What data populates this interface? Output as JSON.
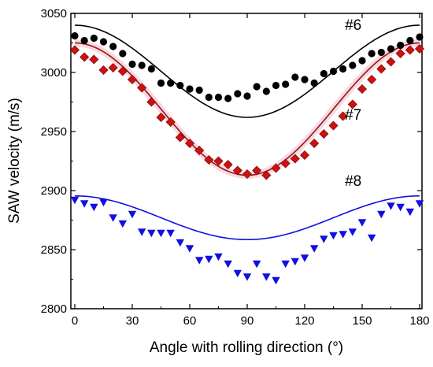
{
  "chart_data": {
    "type": "scatter",
    "xlabel": "Angle with rolling direction (°)",
    "ylabel": "SAW velocity (m/s)",
    "xlim": [
      0,
      180
    ],
    "ylim": [
      2800,
      3050
    ],
    "xticks": [
      0,
      30,
      60,
      90,
      120,
      150,
      180
    ],
    "yticks": [
      2800,
      2850,
      2900,
      2950,
      3000,
      3050
    ],
    "grid": false,
    "series": [
      {
        "name": "#6",
        "marker": "circle",
        "color": "#000000",
        "x": [
          0,
          5,
          10,
          15,
          20,
          25,
          30,
          35,
          40,
          45,
          50,
          55,
          60,
          65,
          70,
          75,
          80,
          85,
          90,
          95,
          100,
          105,
          110,
          115,
          120,
          125,
          130,
          135,
          140,
          145,
          150,
          155,
          160,
          165,
          170,
          175,
          180
        ],
        "y": [
          3031,
          3027,
          3029,
          3026,
          3022,
          3016,
          3007,
          3006,
          3003,
          2991,
          2991,
          2989,
          2986,
          2985,
          2979,
          2979,
          2978,
          2982,
          2980,
          2988,
          2984,
          2989,
          2990,
          2996,
          2994,
          2991,
          2999,
          3001,
          3003,
          3006,
          3010,
          3016,
          3017,
          3020,
          3023,
          3027,
          3030
        ],
        "fit": {
          "mean": 3001,
          "amplitude": 39
        }
      },
      {
        "name": "#7",
        "marker": "diamond",
        "color": "#cc1111",
        "x": [
          0,
          5,
          10,
          15,
          20,
          25,
          30,
          35,
          40,
          45,
          50,
          55,
          60,
          65,
          70,
          75,
          80,
          85,
          90,
          95,
          100,
          105,
          110,
          115,
          120,
          125,
          130,
          135,
          140,
          145,
          150,
          155,
          160,
          165,
          170,
          175,
          180
        ],
        "y": [
          3019,
          3013,
          3011,
          3002,
          3004,
          3001,
          2994,
          2987,
          2975,
          2962,
          2958,
          2945,
          2940,
          2934,
          2926,
          2925,
          2922,
          2917,
          2914,
          2917,
          2913,
          2919,
          2923,
          2927,
          2930,
          2940,
          2948,
          2955,
          2963,
          2973,
          2986,
          2994,
          3003,
          3009,
          3016,
          3019,
          3020
        ],
        "fit": {
          "mean": 2969,
          "amplitude": 56
        }
      },
      {
        "name": "#8",
        "marker": "triangle-down",
        "color": "#1010e0",
        "x": [
          0,
          5,
          10,
          15,
          20,
          25,
          30,
          35,
          40,
          45,
          50,
          55,
          60,
          65,
          70,
          75,
          80,
          85,
          90,
          95,
          100,
          105,
          110,
          115,
          120,
          125,
          130,
          135,
          140,
          145,
          150,
          155,
          160,
          165,
          170,
          175,
          180
        ],
        "y": [
          2892,
          2889,
          2886,
          2890,
          2877,
          2872,
          2880,
          2865,
          2864,
          2864,
          2864,
          2856,
          2851,
          2841,
          2842,
          2844,
          2838,
          2830,
          2827,
          2838,
          2827,
          2824,
          2838,
          2840,
          2843,
          2851,
          2859,
          2862,
          2863,
          2865,
          2873,
          2860,
          2880,
          2887,
          2886,
          2882,
          2889
        ],
        "fit": {
          "mean": 2877,
          "amplitude": 18.5
        }
      }
    ],
    "annotations": [
      {
        "text": "#6",
        "x": 141,
        "y": 3036
      },
      {
        "text": "#7",
        "x": 141,
        "y": 2960
      },
      {
        "text": "#8",
        "x": 141,
        "y": 2904
      }
    ]
  }
}
